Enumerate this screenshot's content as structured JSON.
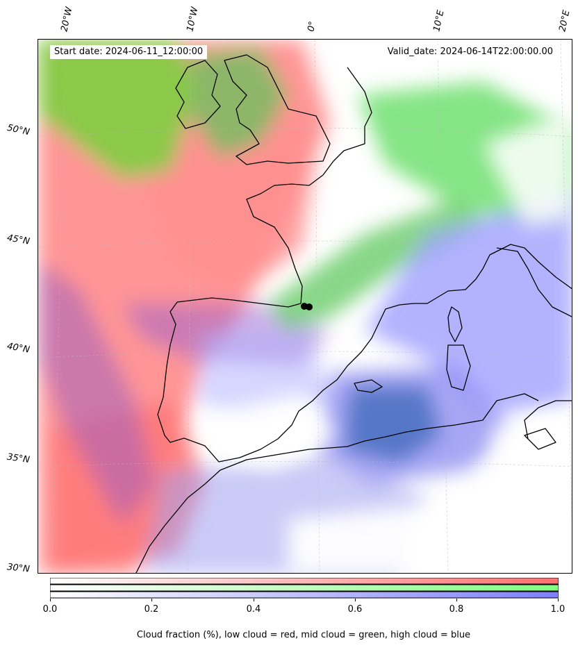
{
  "header": {
    "start_date": "Start date: 2024-06-11_12:00:00",
    "valid_date": "Valid_date: 2024-06-14T22:00:00.00"
  },
  "axes": {
    "lon_labels": [
      "20°W",
      "10°W",
      "0°",
      "10°E",
      "20°E"
    ],
    "lat_labels": [
      "50°N",
      "45°N",
      "40°N",
      "35°N",
      "30°N"
    ]
  },
  "map": {
    "type": "cloud-fraction composite",
    "lon_range": [
      -22,
      20
    ],
    "lat_range": [
      30,
      54
    ],
    "colors": {
      "low_cloud": "#ff7070",
      "mid_cloud": "#70e070",
      "high_cloud": "#7070ff",
      "land": "#ffffff",
      "coast": "#000000"
    }
  },
  "colorbar": {
    "ticks": [
      "0.0",
      "0.2",
      "0.4",
      "0.6",
      "0.8",
      "1.0"
    ],
    "range": [
      0,
      1
    ],
    "colors": [
      "#ff6f6f",
      "#7fff7f",
      "#7f7fff"
    ]
  },
  "caption": "Cloud fraction (%), low cloud = red, mid cloud = green, high cloud = blue"
}
